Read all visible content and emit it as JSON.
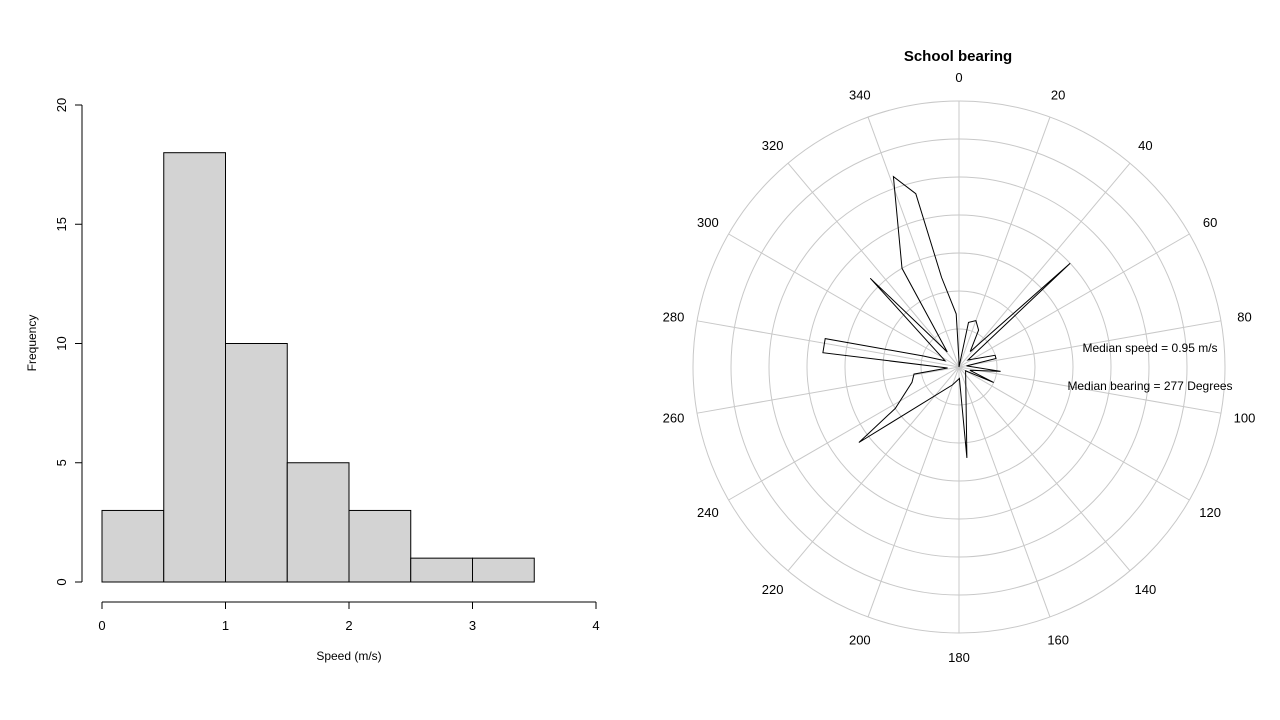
{
  "chart_data": [
    {
      "type": "bar",
      "subtype": "histogram",
      "title": "",
      "xlabel": "Speed (m/s)",
      "ylabel": "Frequency",
      "bins": [
        {
          "x0": 0.0,
          "x1": 0.5,
          "count": 3
        },
        {
          "x0": 0.5,
          "x1": 1.0,
          "count": 18
        },
        {
          "x0": 1.0,
          "x1": 1.5,
          "count": 10
        },
        {
          "x0": 1.5,
          "x1": 2.0,
          "count": 5
        },
        {
          "x0": 2.0,
          "x1": 2.5,
          "count": 3
        },
        {
          "x0": 2.5,
          "x1": 3.0,
          "count": 1
        },
        {
          "x0": 3.0,
          "x1": 3.5,
          "count": 1
        }
      ],
      "xticks": [
        0,
        1,
        2,
        3,
        4
      ],
      "yticks": [
        0,
        5,
        10,
        15,
        20
      ],
      "xlim": [
        0,
        4
      ],
      "ylim": [
        0,
        20
      ],
      "bar_color": "#d3d3d3",
      "grid": false
    },
    {
      "type": "line",
      "subtype": "polar",
      "title": "School bearing",
      "angle_ticks": [
        0,
        20,
        40,
        60,
        80,
        100,
        120,
        140,
        160,
        180,
        200,
        220,
        240,
        260,
        280,
        300,
        320,
        340
      ],
      "radial_rings": 7,
      "rmax": 7,
      "rotation": "clockwise",
      "zero_direction": "top",
      "grid": true,
      "grid_color": "#c8c8c8",
      "series": [
        {
          "points": [
            [
              0,
              0
            ],
            [
              12,
              1.2
            ],
            [
              20,
              1.3
            ],
            [
              28,
              1.1
            ],
            [
              36,
              0.5
            ],
            [
              47,
              4.0
            ],
            [
              52,
              0.3
            ],
            [
              72,
              1.0
            ],
            [
              77,
              1.0
            ],
            [
              82,
              0.2
            ],
            [
              96,
              1.1
            ],
            [
              107,
              0.3
            ],
            [
              114,
              1.0
            ],
            [
              120,
              0.2
            ],
            [
              175,
              2.4
            ],
            [
              178,
              0.3
            ],
            [
              200,
              0.5
            ],
            [
              233,
              3.3
            ],
            [
              237,
              2.0
            ],
            [
              252,
              1.3
            ],
            [
              261,
              1.2
            ],
            [
              265,
              0.3
            ],
            [
              276,
              3.6
            ],
            [
              282,
              3.6
            ],
            [
              287,
              1.0
            ],
            [
              294,
              0.4
            ],
            [
              315,
              3.3
            ],
            [
              322,
              0.5
            ],
            [
              330,
              3.0
            ],
            [
              341,
              5.3
            ],
            [
              346,
              4.7
            ],
            [
              349,
              2.4
            ],
            [
              357,
              1.4
            ],
            [
              359,
              0.2
            ]
          ]
        }
      ],
      "annotations": [
        "Median speed = 0.95 m/s",
        "Median bearing = 277 Degrees"
      ]
    }
  ]
}
